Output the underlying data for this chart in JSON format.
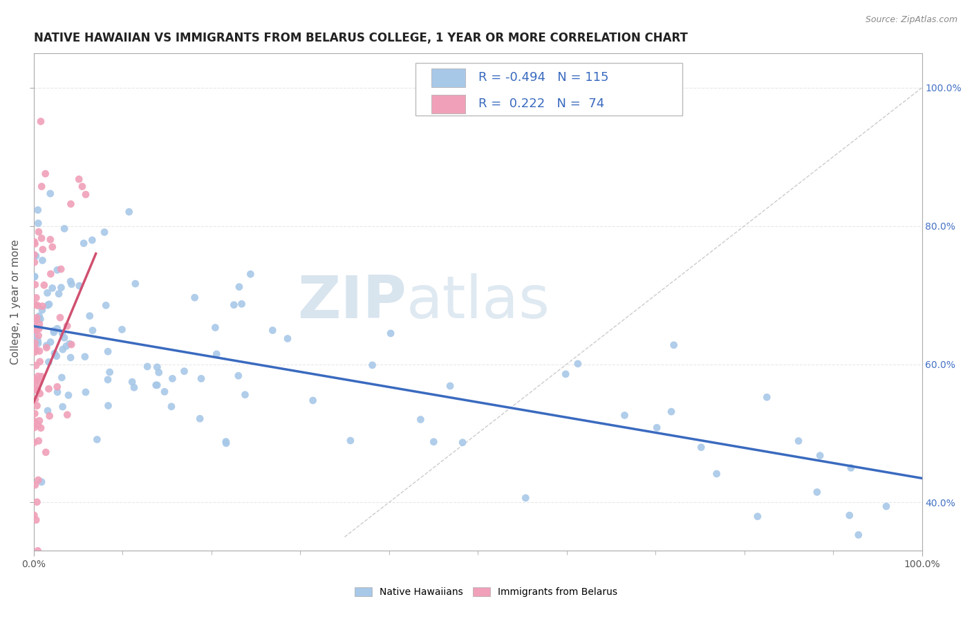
{
  "title": "NATIVE HAWAIIAN VS IMMIGRANTS FROM BELARUS COLLEGE, 1 YEAR OR MORE CORRELATION CHART",
  "source_text": "Source: ZipAtlas.com",
  "ylabel": "College, 1 year or more",
  "scatter_blue_color": "#a8c8e8",
  "scatter_pink_color": "#f0a0b8",
  "line_blue_color": "#3a6abf",
  "line_pink_color": "#d05070",
  "ref_line_color": "#cccccc",
  "watermark_zip": "ZIP",
  "watermark_atlas": "atlas",
  "watermark_color": "#c8ddef",
  "r_blue": "-0.494",
  "n_blue": "115",
  "r_pink": "0.222",
  "n_pink": "74",
  "legend_label_blue": "Native Hawaiians",
  "legend_label_pink": "Immigrants from Belarus",
  "blue_line_x": [
    0.0,
    1.0
  ],
  "blue_line_y": [
    0.655,
    0.435
  ],
  "pink_line_x": [
    0.0,
    0.07
  ],
  "pink_line_y": [
    0.545,
    0.76
  ],
  "ref_line_x": [
    0.35,
    1.0
  ],
  "ref_line_y": [
    0.35,
    1.0
  ],
  "xlim": [
    0.0,
    1.0
  ],
  "ylim": [
    0.33,
    1.05
  ],
  "ytick_labels": [
    "40.0%",
    "60.0%",
    "80.0%",
    "100.0%"
  ],
  "ytick_values": [
    0.4,
    0.6,
    0.8,
    1.0
  ],
  "grid_color": "#e8e8e8",
  "title_fontsize": 12,
  "axis_label_fontsize": 11,
  "tick_fontsize": 10,
  "legend_fontsize": 13
}
